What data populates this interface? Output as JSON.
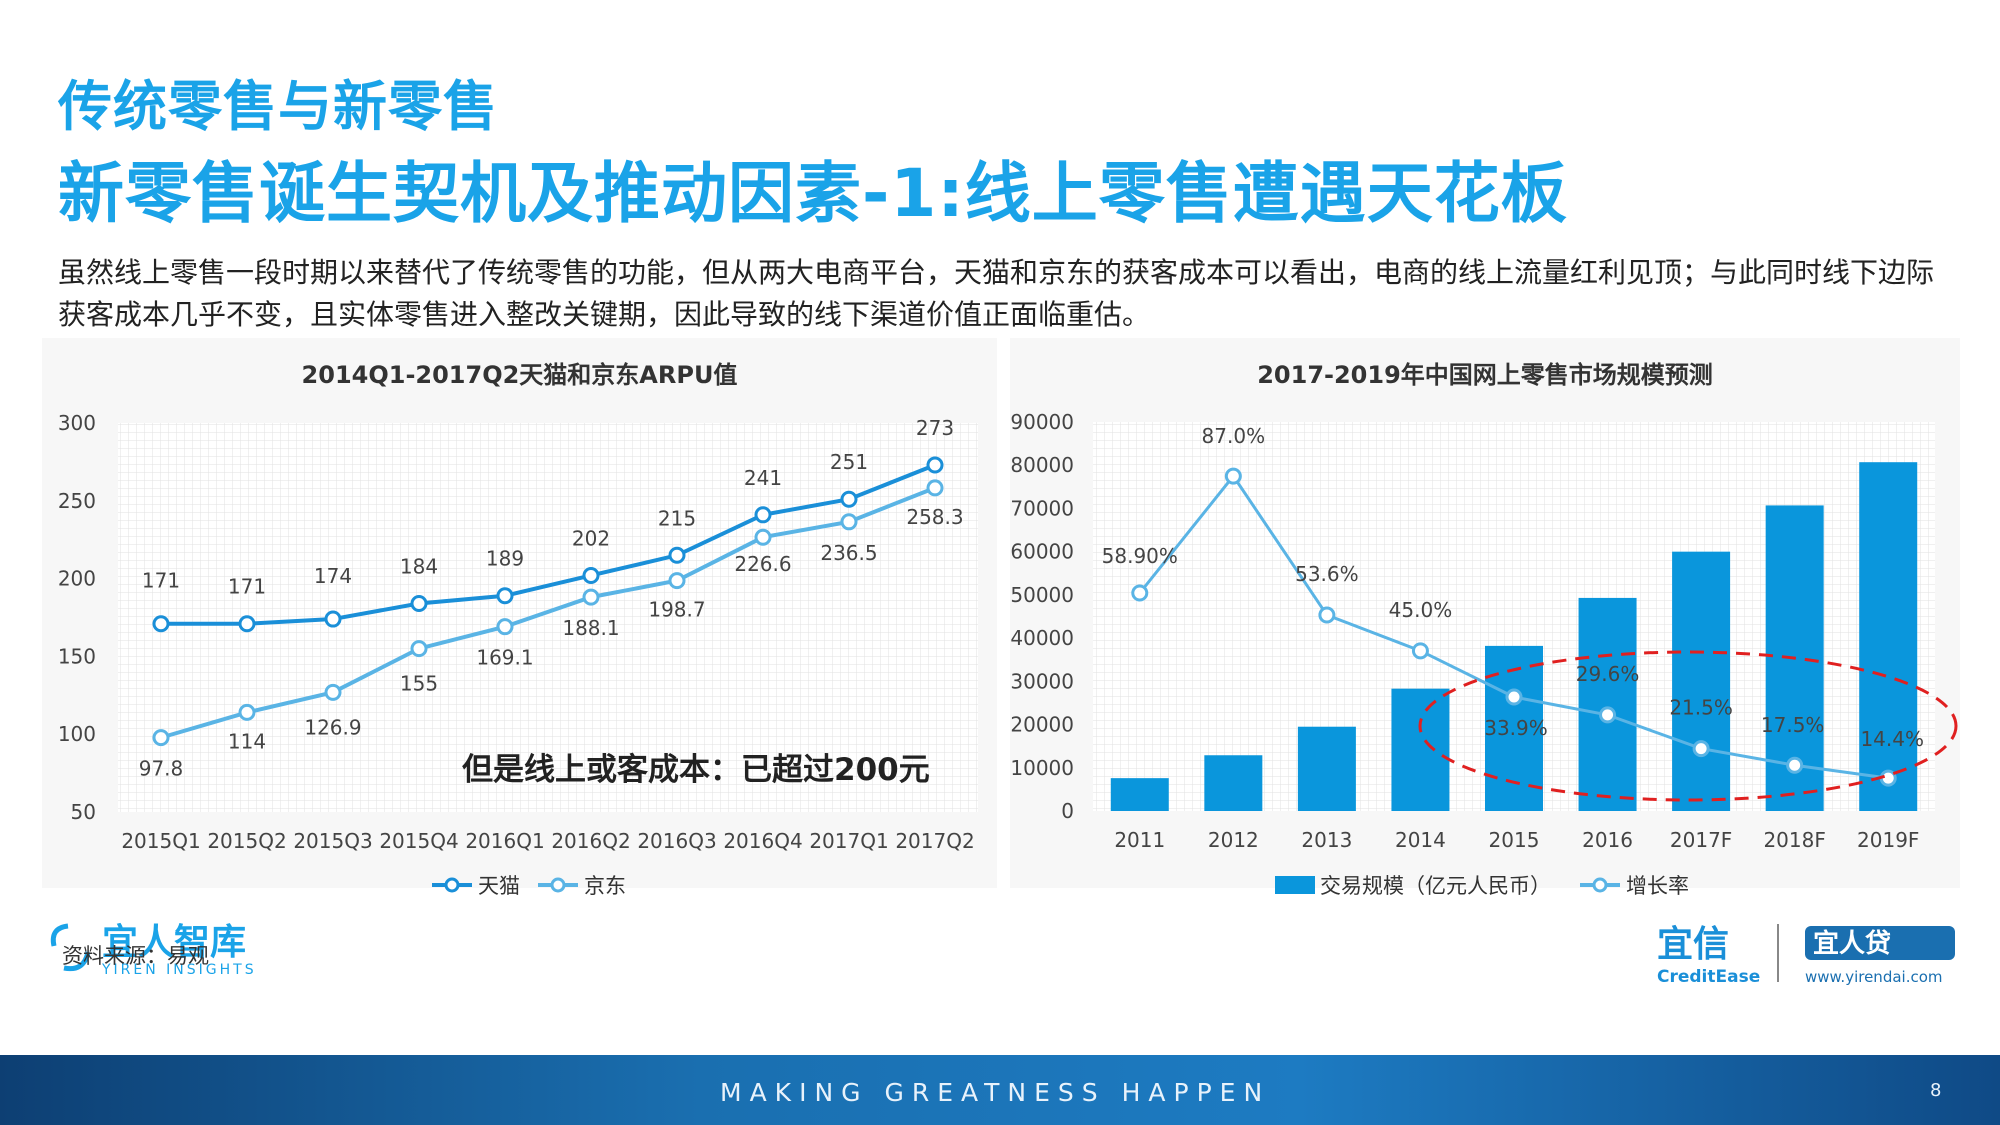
{
  "header": {
    "section_title": "传统零售与新零售",
    "page_title": "新零售诞生契机及推动因素-1:线上零售遭遇天花板",
    "intro": "虽然线上零售一段时期以来替代了传统零售的功能，但从两大电商平台，天猫和京东的获客成本可以看出，电商的线上流量红利见顶；与此同时线下边际获客成本几乎不变，且实体零售进入整改关键期，因此导致的线下渠道价值正面临重估。"
  },
  "callout": "但是线上或客成本：已超过200元",
  "source": "资料来源：易观",
  "logos": {
    "yiren_cn": "宜人智库",
    "yiren_en": "YIREN INSIGHTS",
    "yixin_cn": "宜信",
    "yixin_en": "CreditEase",
    "yirendai_cn": "宜人贷",
    "yirendai_url": "www.yirendai.com"
  },
  "footer": {
    "tagline": "MAKING GREATNESS HAPPEN",
    "page_number": "8"
  },
  "colors": {
    "title_blue": "#1aa3e8",
    "tmall": "#1a8fd8",
    "jd": "#5ab4e5",
    "bar": "#0a96dc",
    "growth": "#5ab4e5",
    "ellipse": "#e02020"
  },
  "chart_data": [
    {
      "type": "line",
      "title": "2014Q1-2017Q2天猫和京东ARPU值",
      "categories": [
        "2015Q1",
        "2015Q2",
        "2015Q3",
        "2015Q4",
        "2016Q1",
        "2016Q2",
        "2016Q3",
        "2016Q4",
        "2017Q1",
        "2017Q2"
      ],
      "series": [
        {
          "name": "天猫",
          "values": [
            171,
            171,
            174,
            184,
            189,
            202,
            215,
            241,
            251,
            273
          ],
          "labels": [
            "171",
            "171",
            "174",
            "184",
            "189",
            "202",
            "215",
            "241",
            "251",
            "273"
          ]
        },
        {
          "name": "京东",
          "values": [
            97.8,
            114,
            126.9,
            155,
            169.1,
            188.1,
            198.7,
            226.6,
            236.5,
            258.3
          ],
          "labels": [
            "97.8",
            "114",
            "126.9",
            "155",
            "169.1",
            "188.1",
            "198.7",
            "226.6",
            "236.5",
            "258.3"
          ]
        }
      ],
      "ylim": [
        50,
        300
      ],
      "yticks": [
        "50",
        "100",
        "150",
        "200",
        "250",
        "300"
      ],
      "grid": true,
      "legend": "bottom"
    },
    {
      "type": "bar",
      "title": "2017-2019年中国网上零售市场规模预测",
      "categories": [
        "2011",
        "2012",
        "2013",
        "2014",
        "2015",
        "2016",
        "2017F",
        "2018F",
        "2019F"
      ],
      "series": [
        {
          "name": "交易规模（亿元人民币）",
          "type": "bar",
          "values": [
            7600,
            12900,
            19500,
            28300,
            38200,
            49300,
            60000,
            70700,
            80700
          ]
        },
        {
          "name": "增长率",
          "type": "line",
          "values": [
            58.9,
            87.0,
            53.6,
            45.0,
            33.9,
            29.6,
            21.5,
            17.5,
            14.4
          ],
          "labels": [
            "58.90%",
            "87.0%",
            "53.6%",
            "45.0%",
            "33.9%",
            "29.6%",
            "21.5%",
            "17.5%",
            "14.4%"
          ]
        }
      ],
      "ylim": [
        0,
        90000
      ],
      "yticks": [
        "0",
        "10000",
        "20000",
        "30000",
        "40000",
        "50000",
        "60000",
        "70000",
        "80000",
        "90000"
      ],
      "grid": true,
      "legend": "bottom"
    }
  ]
}
